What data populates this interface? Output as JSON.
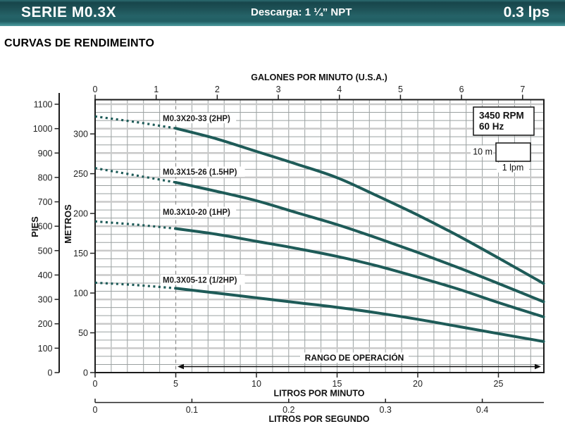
{
  "header": {
    "series_label": "SERIE M0.3X",
    "discharge_label": "Descarga: 1 ¼” NPT",
    "flow_label": "0.3 lps"
  },
  "page_title": "CURVAS DE RENDIMEINTO",
  "chart_data": {
    "type": "line",
    "top_axis": {
      "label": "GALONES POR MINUTO (U.S.A.)",
      "ticks": [
        0,
        1,
        2,
        3,
        4,
        5,
        6,
        7
      ]
    },
    "left_axis_feet": {
      "label": "PIES",
      "ticks": [
        0,
        100,
        200,
        300,
        400,
        500,
        600,
        700,
        800,
        900,
        1000,
        1100
      ]
    },
    "left_axis_meters": {
      "label": "METROS",
      "ticks": [
        0,
        50,
        100,
        150,
        200,
        250,
        300
      ]
    },
    "bottom_axis_lpm": {
      "label": "LITROS POR MINUTO",
      "ticks": [
        0,
        5,
        10,
        15,
        20,
        25
      ],
      "xmax": 27.8
    },
    "bottom_axis_lps": {
      "label": "LITROS POR SEGUNDO",
      "ticks": [
        0,
        0.1,
        0.2,
        0.3,
        0.4
      ]
    },
    "annotations": {
      "rpm": "3450 RPM",
      "freq": "60 Hz",
      "scale_height": "10 m",
      "scale_width": "1 lpm",
      "operation_range": "RANGO DE OPERACIÓN",
      "operation_range_from_lpm": 5
    },
    "dashed_guide_lpm": 5,
    "dotted_until_lpm": 5,
    "series": [
      {
        "name": "M0.3X20-33 (2HP)",
        "points_lpm_m": [
          [
            0,
            322
          ],
          [
            2.5,
            315
          ],
          [
            5,
            307
          ],
          [
            7.5,
            294
          ],
          [
            10,
            278
          ],
          [
            12.5,
            262
          ],
          [
            15,
            245
          ],
          [
            17.5,
            222
          ],
          [
            20,
            198
          ],
          [
            22.5,
            172
          ],
          [
            25,
            144
          ],
          [
            27.8,
            112
          ]
        ]
      },
      {
        "name": "M0.3X15-26 (1.5HP)",
        "points_lpm_m": [
          [
            0,
            257
          ],
          [
            2.5,
            248
          ],
          [
            5,
            239
          ],
          [
            7.5,
            228
          ],
          [
            10,
            216
          ],
          [
            12.5,
            201
          ],
          [
            15,
            186
          ],
          [
            17.5,
            169
          ],
          [
            20,
            151
          ],
          [
            22.5,
            132
          ],
          [
            25,
            112
          ],
          [
            27.8,
            89
          ]
        ]
      },
      {
        "name": "M0.3X10-20 (1HP)",
        "points_lpm_m": [
          [
            0,
            190
          ],
          [
            2.5,
            186
          ],
          [
            5,
            181
          ],
          [
            7.5,
            174
          ],
          [
            10,
            165
          ],
          [
            12.5,
            156
          ],
          [
            15,
            146
          ],
          [
            17.5,
            134
          ],
          [
            20,
            120
          ],
          [
            22.5,
            105
          ],
          [
            25,
            88
          ],
          [
            27.8,
            70
          ]
        ]
      },
      {
        "name": "M0.3X05-12 (1/2HP)",
        "points_lpm_m": [
          [
            0,
            113
          ],
          [
            2.5,
            110
          ],
          [
            5,
            106
          ],
          [
            7.5,
            100
          ],
          [
            10,
            94
          ],
          [
            12.5,
            88
          ],
          [
            15,
            82
          ],
          [
            17.5,
            75
          ],
          [
            20,
            67
          ],
          [
            22.5,
            58
          ],
          [
            25,
            49
          ],
          [
            27.8,
            39
          ]
        ]
      }
    ],
    "colors": {
      "curve": "#1e5b58",
      "grid_minor": "#9aa0a0",
      "grid_major": "#c9c9c9",
      "frame": "#1b1b1b",
      "header_teal": "#235d62"
    }
  }
}
